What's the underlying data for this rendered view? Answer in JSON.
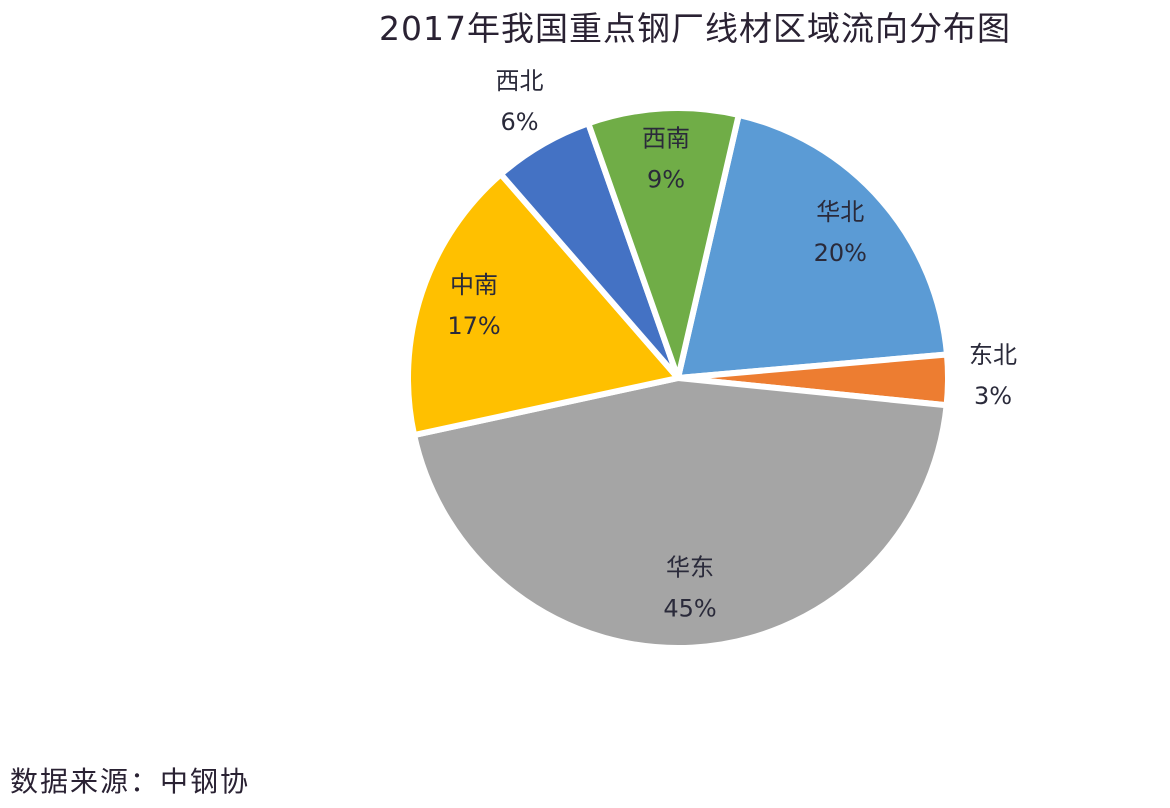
{
  "chart_data": {
    "type": "pie",
    "title": "2017年我国重点钢厂线材区域流向分布图",
    "source": "数据来源：中钢协",
    "start_angle_deg": 13,
    "direction": "clockwise",
    "slices": [
      {
        "name": "华北",
        "value": 20,
        "label": "20%",
        "color": "#5B9BD5",
        "label_placement": "inside"
      },
      {
        "name": "东北",
        "value": 3,
        "label": "3%",
        "color": "#ED7D31",
        "label_placement": "outside"
      },
      {
        "name": "华东",
        "value": 45,
        "label": "45%",
        "color": "#A5A5A5",
        "label_placement": "inside"
      },
      {
        "name": "中南",
        "value": 17,
        "label": "17%",
        "color": "#FFC000",
        "label_placement": "inside"
      },
      {
        "name": "西北",
        "value": 6,
        "label": "6%",
        "color": "#4472C4",
        "label_placement": "outside"
      },
      {
        "name": "西南",
        "value": 9,
        "label": "9%",
        "color": "#70AD47",
        "label_placement": "inside"
      }
    ]
  }
}
